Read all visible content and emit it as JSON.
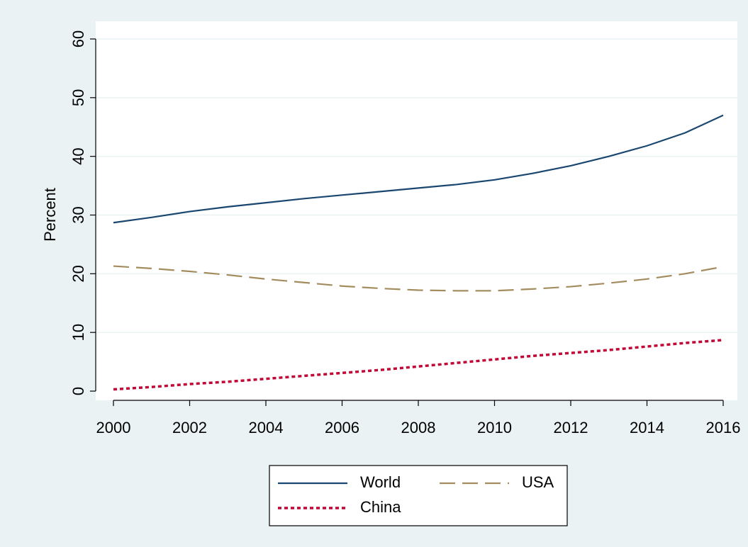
{
  "chart_data": {
    "type": "line",
    "y_label": "Percent",
    "x": [
      2000,
      2001,
      2002,
      2003,
      2004,
      2005,
      2006,
      2007,
      2008,
      2009,
      2010,
      2011,
      2012,
      2013,
      2014,
      2015,
      2016
    ],
    "series": [
      {
        "name": "World",
        "color": "#1a476f",
        "style": "solid",
        "values": [
          28.7,
          29.6,
          30.6,
          31.4,
          32.1,
          32.8,
          33.4,
          34.0,
          34.6,
          35.2,
          36.0,
          37.1,
          38.4,
          40.0,
          41.8,
          44.0,
          47.0
        ]
      },
      {
        "name": "USA",
        "color": "#a38c5e",
        "style": "dash",
        "values": [
          21.3,
          20.9,
          20.4,
          19.8,
          19.1,
          18.5,
          17.9,
          17.5,
          17.2,
          17.1,
          17.1,
          17.4,
          17.8,
          18.4,
          19.1,
          20.0,
          21.2
        ]
      },
      {
        "name": "China",
        "color": "#c10534",
        "style": "dot",
        "values": [
          0.3,
          0.7,
          1.2,
          1.6,
          2.1,
          2.6,
          3.1,
          3.6,
          4.2,
          4.8,
          5.4,
          6.0,
          6.5,
          7.0,
          7.6,
          8.2,
          8.7
        ]
      }
    ],
    "xlim": [
      2000,
      2016
    ],
    "xticks": [
      2000,
      2002,
      2004,
      2006,
      2008,
      2010,
      2012,
      2014,
      2016
    ],
    "ylim": [
      0,
      60
    ],
    "yticks": [
      0,
      10,
      20,
      30,
      40,
      50,
      60
    ],
    "grid": true,
    "legend": "bottom"
  }
}
